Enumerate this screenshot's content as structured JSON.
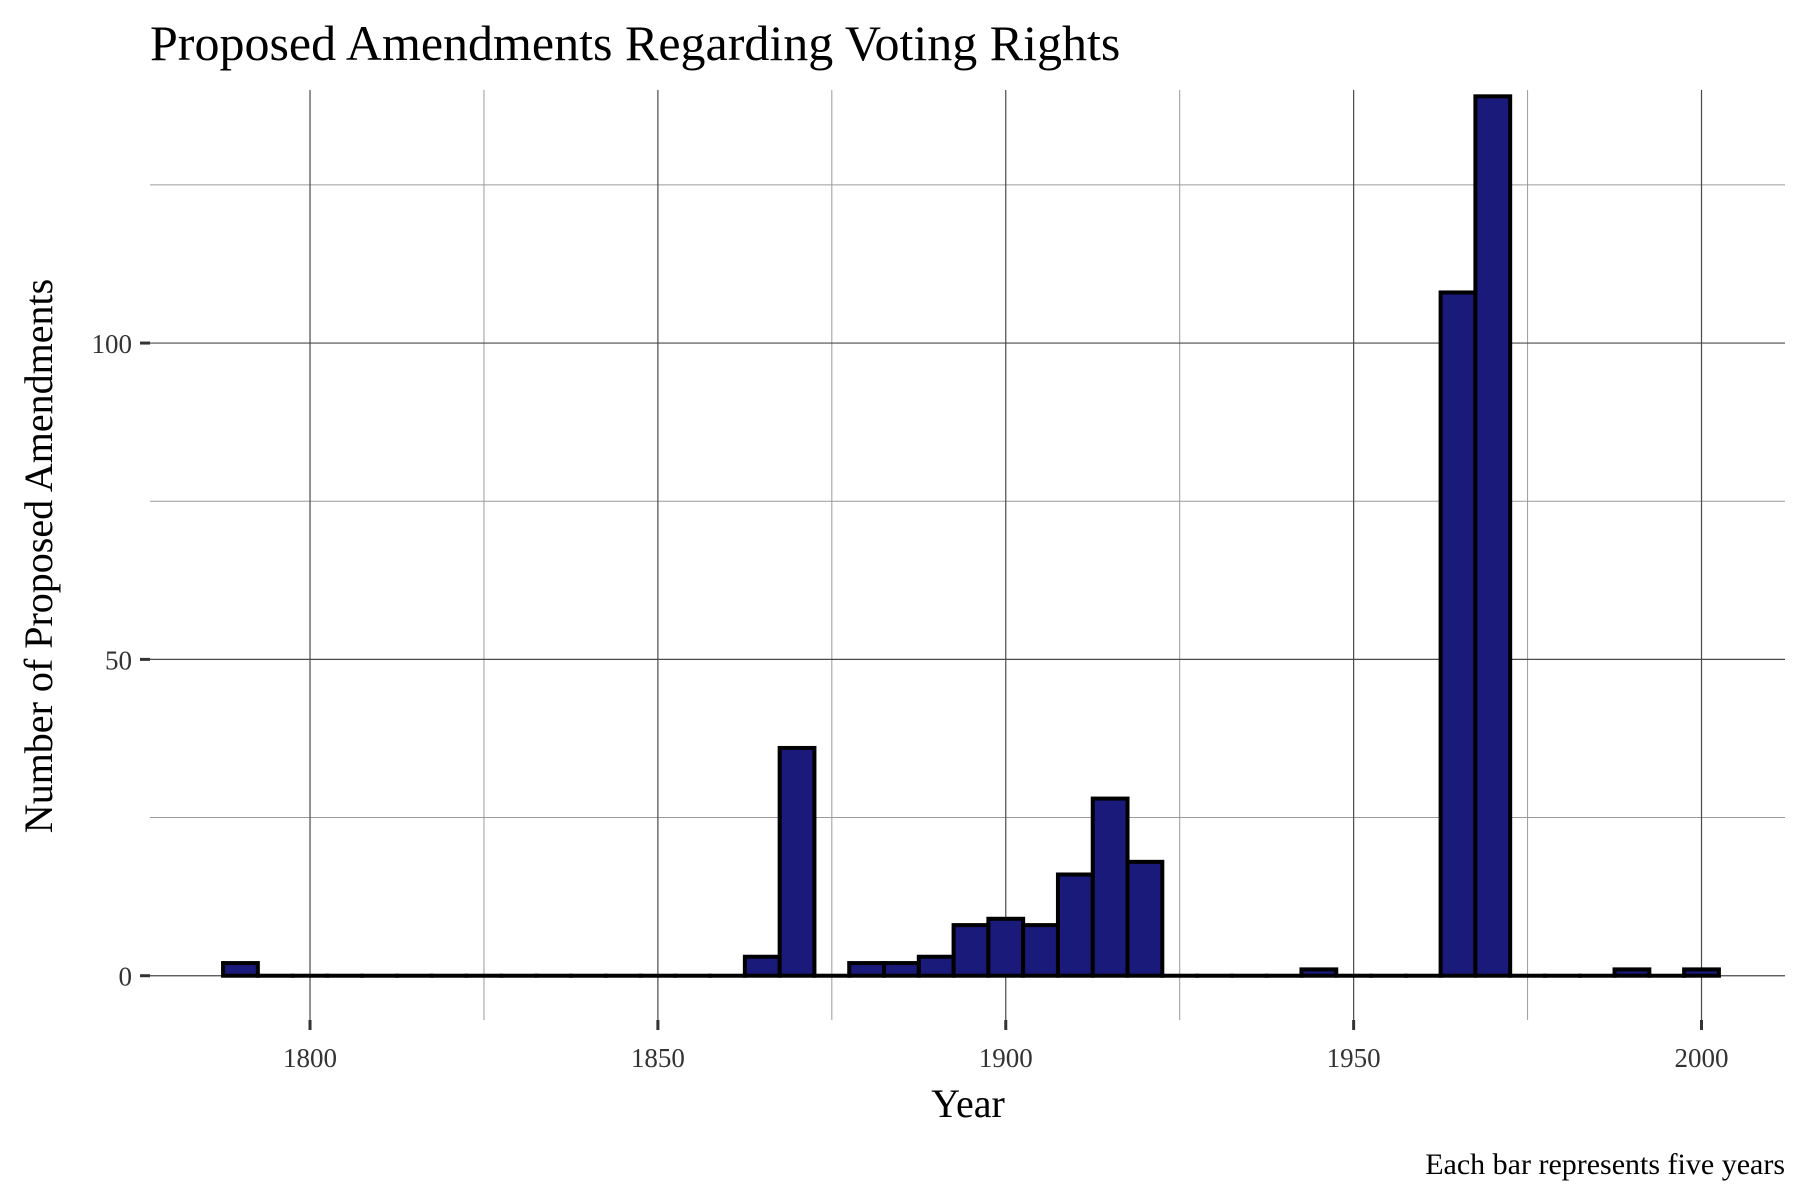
{
  "chart_data": {
    "type": "bar",
    "title": "Proposed Amendments Regarding Voting Rights",
    "xlabel": "Year",
    "ylabel": "Number of Proposed Amendments",
    "caption": "Each bar represents five years",
    "bin_width": 5,
    "xlim": [
      1777,
      2012
    ],
    "ylim": [
      -7,
      140
    ],
    "x_ticks": [
      1800,
      1850,
      1900,
      1950,
      2000
    ],
    "x_tick_labels": [
      "1800",
      "1850",
      "1900",
      "1950",
      "2000"
    ],
    "y_ticks": [
      0,
      50,
      100
    ],
    "y_tick_labels": [
      "0",
      "50",
      "100"
    ],
    "x_minor_gridlines": [
      1825,
      1875,
      1925,
      1975
    ],
    "y_minor_gridlines": [
      25,
      75,
      125
    ],
    "grid": true,
    "legend": "none",
    "bar_fill": "#1a1a7a",
    "bar_outline": "#000000",
    "bin_centers": [
      1790,
      1795,
      1800,
      1805,
      1810,
      1815,
      1820,
      1825,
      1830,
      1835,
      1840,
      1845,
      1850,
      1855,
      1860,
      1865,
      1870,
      1875,
      1880,
      1885,
      1890,
      1895,
      1900,
      1905,
      1910,
      1915,
      1920,
      1925,
      1930,
      1935,
      1940,
      1945,
      1950,
      1955,
      1960,
      1965,
      1970,
      1975,
      1980,
      1985,
      1990,
      1995,
      2000
    ],
    "values": [
      2,
      0,
      0,
      0,
      0,
      0,
      0,
      0,
      0,
      0,
      0,
      0,
      0,
      0,
      0,
      3,
      36,
      0,
      2,
      2,
      3,
      8,
      9,
      8,
      16,
      28,
      18,
      0,
      0,
      0,
      0,
      1,
      0,
      0,
      0,
      108,
      139,
      0,
      0,
      0,
      1,
      0,
      1
    ]
  }
}
